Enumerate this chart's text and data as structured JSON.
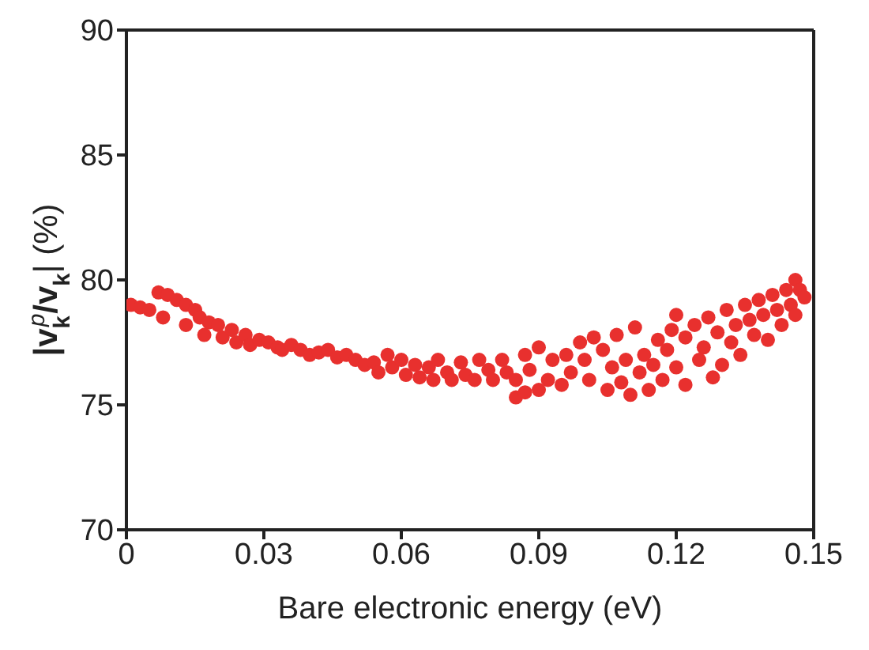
{
  "chart_data": {
    "type": "scatter",
    "xlabel": "Bare electronic energy (eV)",
    "ylabel": "|v$_{k}$$^{p}$/v$_{k}$| (%)",
    "xlim": [
      0,
      0.15
    ],
    "xticks": [
      0,
      0.03,
      0.06,
      0.09,
      0.12,
      0.15
    ],
    "ylim": [
      70,
      90
    ],
    "yticks": [
      70,
      75,
      80,
      85,
      90
    ],
    "grid": false,
    "legend": false,
    "marker": "circle",
    "series": [
      {
        "color": "#e8302e",
        "x": [
          0.001,
          0.003,
          0.005,
          0.007,
          0.009,
          0.008,
          0.011,
          0.013,
          0.013,
          0.015,
          0.016,
          0.018,
          0.017,
          0.02,
          0.021,
          0.023,
          0.024,
          0.026,
          0.027,
          0.029,
          0.031,
          0.033,
          0.034,
          0.036,
          0.038,
          0.04,
          0.042,
          0.044,
          0.046,
          0.048,
          0.05,
          0.052,
          0.054,
          0.055,
          0.057,
          0.058,
          0.06,
          0.061,
          0.063,
          0.064,
          0.066,
          0.067,
          0.068,
          0.07,
          0.071,
          0.073,
          0.074,
          0.076,
          0.077,
          0.079,
          0.08,
          0.082,
          0.083,
          0.085,
          0.085,
          0.087,
          0.087,
          0.088,
          0.09,
          0.09,
          0.092,
          0.093,
          0.095,
          0.096,
          0.097,
          0.099,
          0.1,
          0.101,
          0.102,
          0.104,
          0.105,
          0.106,
          0.107,
          0.108,
          0.109,
          0.11,
          0.111,
          0.112,
          0.113,
          0.114,
          0.115,
          0.116,
          0.117,
          0.118,
          0.119,
          0.12,
          0.12,
          0.122,
          0.122,
          0.124,
          0.125,
          0.126,
          0.127,
          0.128,
          0.129,
          0.13,
          0.131,
          0.132,
          0.133,
          0.134,
          0.135,
          0.136,
          0.137,
          0.138,
          0.139,
          0.14,
          0.141,
          0.142,
          0.143,
          0.144,
          0.145,
          0.146,
          0.146,
          0.147,
          0.148
        ],
        "values": [
          79.0,
          78.9,
          78.8,
          79.5,
          79.4,
          78.5,
          79.2,
          79.0,
          78.2,
          78.8,
          78.5,
          78.3,
          77.8,
          78.2,
          77.7,
          78.0,
          77.5,
          77.8,
          77.4,
          77.6,
          77.5,
          77.3,
          77.2,
          77.4,
          77.2,
          77.0,
          77.1,
          77.2,
          76.9,
          77.0,
          76.8,
          76.6,
          76.7,
          76.3,
          77.0,
          76.5,
          76.8,
          76.2,
          76.6,
          76.1,
          76.5,
          76.0,
          76.8,
          76.3,
          76.0,
          76.7,
          76.2,
          76.0,
          76.8,
          76.4,
          76.0,
          76.8,
          76.3,
          75.3,
          76.0,
          77.0,
          75.5,
          76.4,
          75.6,
          77.3,
          76.0,
          76.8,
          75.8,
          77.0,
          76.3,
          77.5,
          76.8,
          76.0,
          77.7,
          77.2,
          75.6,
          76.5,
          77.8,
          75.9,
          76.8,
          75.4,
          78.1,
          76.3,
          77.0,
          75.6,
          76.6,
          77.6,
          76.0,
          77.2,
          78.0,
          78.6,
          76.5,
          77.7,
          75.8,
          78.2,
          76.8,
          77.3,
          78.5,
          76.1,
          77.9,
          76.6,
          78.8,
          77.5,
          78.2,
          77.0,
          79.0,
          78.4,
          77.8,
          79.2,
          78.6,
          77.6,
          79.4,
          78.8,
          78.2,
          79.6,
          79.0,
          80.0,
          78.6,
          79.6,
          79.3
        ]
      }
    ]
  }
}
